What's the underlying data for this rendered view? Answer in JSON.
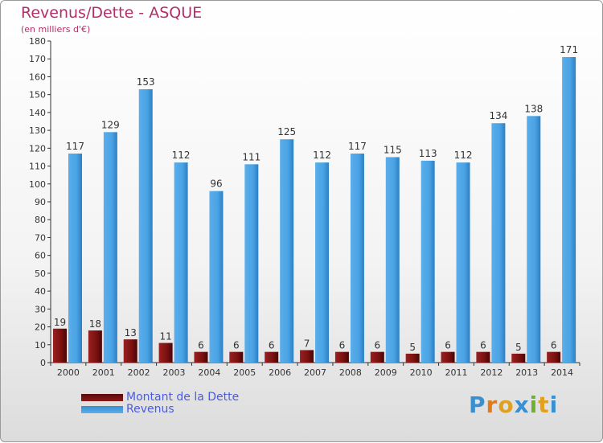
{
  "header": {
    "title": "Revenus/Dette - ASQUE",
    "subtitle": "(en milliers d'€)"
  },
  "legend": {
    "items": [
      {
        "label": "Montant de la Dette",
        "color": "#7a1010"
      },
      {
        "label": "Revenus",
        "color": "#4aa3e4"
      }
    ]
  },
  "logo": {
    "text": "Proxiti"
  },
  "chart_data": {
    "type": "bar",
    "title": "Revenus/Dette - ASQUE",
    "subtitle": "(en milliers d'€)",
    "categories": [
      "2000",
      "2001",
      "2002",
      "2003",
      "2004",
      "2005",
      "2006",
      "2007",
      "2008",
      "2009",
      "2010",
      "2011",
      "2012",
      "2013",
      "2014"
    ],
    "series": [
      {
        "name": "Montant de la Dette",
        "color": "#7a1010",
        "values": [
          19,
          18,
          13,
          11,
          6,
          6,
          6,
          7,
          6,
          6,
          5,
          6,
          6,
          5,
          6
        ]
      },
      {
        "name": "Revenus",
        "color": "#4aa3e4",
        "values": [
          117,
          129,
          153,
          112,
          96,
          111,
          125,
          112,
          117,
          115,
          113,
          112,
          134,
          138,
          171
        ]
      }
    ],
    "ylim": [
      0,
      180
    ],
    "ytick_step": 10,
    "grid": false,
    "legend": "bottom-left"
  }
}
